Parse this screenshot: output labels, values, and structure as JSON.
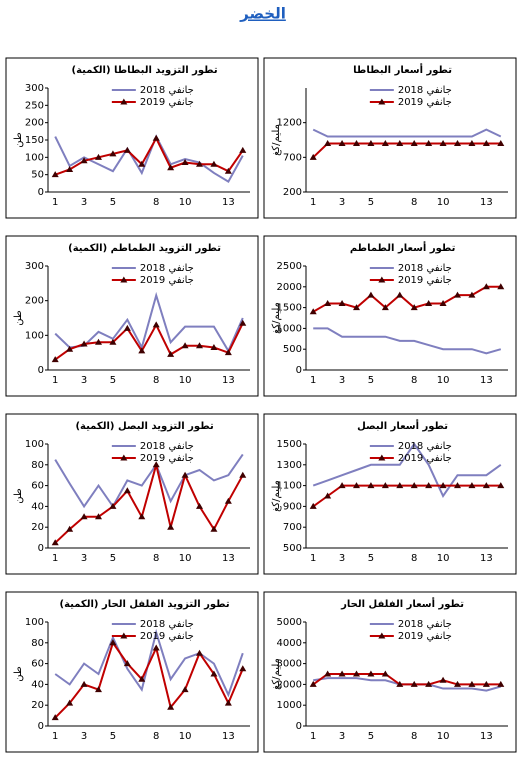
{
  "title": "الخضر",
  "chart_data": [
    {
      "type": "line",
      "title": "تطور التزويد البطاطا (الكمية)",
      "ylabel": "طن",
      "categories": [
        1,
        null,
        3,
        null,
        5,
        null,
        null,
        8,
        null,
        10,
        null,
        null,
        13,
        null
      ],
      "series": [
        {
          "name": "جانفي 2018",
          "color": "#7f7fbf",
          "values": [
            160,
            75,
            100,
            80,
            60,
            125,
            55,
            160,
            80,
            95,
            85,
            55,
            30,
            105
          ]
        },
        {
          "name": "جانفي 2019",
          "color": "#c00000",
          "values": [
            50,
            65,
            90,
            100,
            110,
            120,
            80,
            155,
            70,
            85,
            80,
            80,
            60,
            120
          ]
        }
      ],
      "ylim": [
        0,
        300
      ],
      "yticks": [
        0,
        50,
        100,
        150,
        200,
        250,
        300
      ]
    },
    {
      "type": "line",
      "title": "تطور أسعار البطاطا",
      "ylabel": "مليم/كغ",
      "categories": [
        1,
        null,
        3,
        null,
        5,
        null,
        null,
        8,
        null,
        10,
        null,
        null,
        13,
        null
      ],
      "series": [
        {
          "name": "جانفي 2018",
          "color": "#7f7fbf",
          "values": [
            1100,
            1000,
            1000,
            1000,
            1000,
            1000,
            1000,
            1000,
            1000,
            1000,
            1000,
            1000,
            1100,
            1000
          ]
        },
        {
          "name": "جانفي 2019",
          "color": "#c00000",
          "values": [
            700,
            900,
            900,
            900,
            900,
            900,
            900,
            900,
            900,
            900,
            900,
            900,
            900,
            900
          ]
        }
      ],
      "ylim": [
        200,
        1700
      ],
      "yticks": [
        200,
        700,
        1200
      ]
    },
    {
      "type": "line",
      "title": "تطور التزويد الطماطم (الكمية)",
      "ylabel": "طن",
      "categories": [
        1,
        null,
        3,
        null,
        5,
        null,
        null,
        8,
        null,
        10,
        null,
        null,
        13,
        null
      ],
      "series": [
        {
          "name": "جانفي 2018",
          "color": "#7f7fbf",
          "values": [
            105,
            65,
            70,
            110,
            90,
            145,
            65,
            215,
            80,
            125,
            125,
            125,
            55,
            150
          ]
        },
        {
          "name": "جانفي 2019",
          "color": "#c00000",
          "values": [
            30,
            60,
            75,
            80,
            80,
            120,
            55,
            130,
            45,
            70,
            70,
            65,
            50,
            135
          ]
        }
      ],
      "ylim": [
        0,
        300
      ],
      "yticks": [
        0,
        100,
        200,
        300
      ]
    },
    {
      "type": "line",
      "title": "تطور أسعار الطماطم",
      "ylabel": "مليم/كغ",
      "categories": [
        1,
        null,
        3,
        null,
        5,
        null,
        null,
        8,
        null,
        10,
        null,
        null,
        13,
        null
      ],
      "series": [
        {
          "name": "جانفي 2018",
          "color": "#7f7fbf",
          "values": [
            1000,
            1000,
            800,
            800,
            800,
            800,
            700,
            700,
            600,
            500,
            500,
            500,
            400,
            500
          ]
        },
        {
          "name": "جانفي 2019",
          "color": "#c00000",
          "values": [
            1400,
            1600,
            1600,
            1500,
            1800,
            1500,
            1800,
            1500,
            1600,
            1600,
            1800,
            1800,
            2000,
            2000
          ]
        }
      ],
      "ylim": [
        0,
        2500
      ],
      "yticks": [
        0,
        500,
        1000,
        1500,
        2000,
        2500
      ]
    },
    {
      "type": "line",
      "title": "تطور التزويد البصل (الكمية)",
      "ylabel": "طن",
      "categories": [
        1,
        null,
        3,
        null,
        5,
        null,
        null,
        8,
        null,
        10,
        null,
        null,
        13,
        null
      ],
      "series": [
        {
          "name": "جانفي 2018",
          "color": "#7f7fbf",
          "values": [
            85,
            62,
            40,
            60,
            40,
            65,
            60,
            80,
            45,
            70,
            75,
            65,
            70,
            90
          ]
        },
        {
          "name": "جانفي 2019",
          "color": "#c00000",
          "values": [
            5,
            18,
            30,
            30,
            40,
            55,
            30,
            80,
            20,
            70,
            40,
            18,
            45,
            70
          ]
        }
      ],
      "ylim": [
        0,
        100
      ],
      "yticks": [
        0,
        20,
        40,
        60,
        80,
        100
      ]
    },
    {
      "type": "line",
      "title": "تطور أسعار البصل",
      "ylabel": "مليم/كغ",
      "categories": [
        1,
        null,
        3,
        null,
        5,
        null,
        null,
        8,
        null,
        10,
        null,
        null,
        13,
        null
      ],
      "series": [
        {
          "name": "جانفي 2018",
          "color": "#7f7fbf",
          "values": [
            1100,
            1150,
            1200,
            1250,
            1300,
            1300,
            1300,
            1500,
            1300,
            1000,
            1200,
            1200,
            1200,
            1300
          ]
        },
        {
          "name": "جانفي 2019",
          "color": "#c00000",
          "values": [
            900,
            1000,
            1100,
            1100,
            1100,
            1100,
            1100,
            1100,
            1100,
            1100,
            1100,
            1100,
            1100,
            1100
          ]
        }
      ],
      "ylim": [
        500,
        1500
      ],
      "yticks": [
        500,
        700,
        900,
        1100,
        1300,
        1500
      ]
    },
    {
      "type": "line",
      "title": "تطور التزويد الفلفل الحار (الكمية)",
      "ylabel": "طن",
      "categories": [
        1,
        null,
        3,
        null,
        5,
        null,
        null,
        8,
        null,
        10,
        null,
        null,
        13,
        null
      ],
      "series": [
        {
          "name": "جانفي 2018",
          "color": "#7f7fbf",
          "values": [
            50,
            40,
            60,
            50,
            85,
            55,
            35,
            90,
            45,
            65,
            70,
            60,
            30,
            70
          ]
        },
        {
          "name": "جانفي 2019",
          "color": "#c00000",
          "values": [
            8,
            22,
            40,
            35,
            80,
            60,
            45,
            75,
            18,
            35,
            70,
            50,
            22,
            55
          ]
        }
      ],
      "ylim": [
        0,
        100
      ],
      "yticks": [
        0,
        20,
        40,
        60,
        80,
        100
      ]
    },
    {
      "type": "line",
      "title": "تطور أسعار الفلفل الحار",
      "ylabel": "مليم/كغ",
      "categories": [
        1,
        null,
        3,
        null,
        5,
        null,
        null,
        8,
        null,
        10,
        null,
        null,
        13,
        null
      ],
      "series": [
        {
          "name": "جانفي 2018",
          "color": "#7f7fbf",
          "values": [
            2200,
            2300,
            2300,
            2300,
            2200,
            2200,
            2000,
            2000,
            2000,
            1800,
            1800,
            1800,
            1700,
            1900
          ]
        },
        {
          "name": "جانفي 2019",
          "color": "#c00000",
          "values": [
            2000,
            2500,
            2500,
            2500,
            2500,
            2500,
            2000,
            2000,
            2000,
            2200,
            2000,
            2000,
            2000,
            2000
          ]
        }
      ],
      "ylim": [
        0,
        5000
      ],
      "yticks": [
        0,
        1000,
        2000,
        3000,
        4000,
        5000
      ]
    }
  ]
}
